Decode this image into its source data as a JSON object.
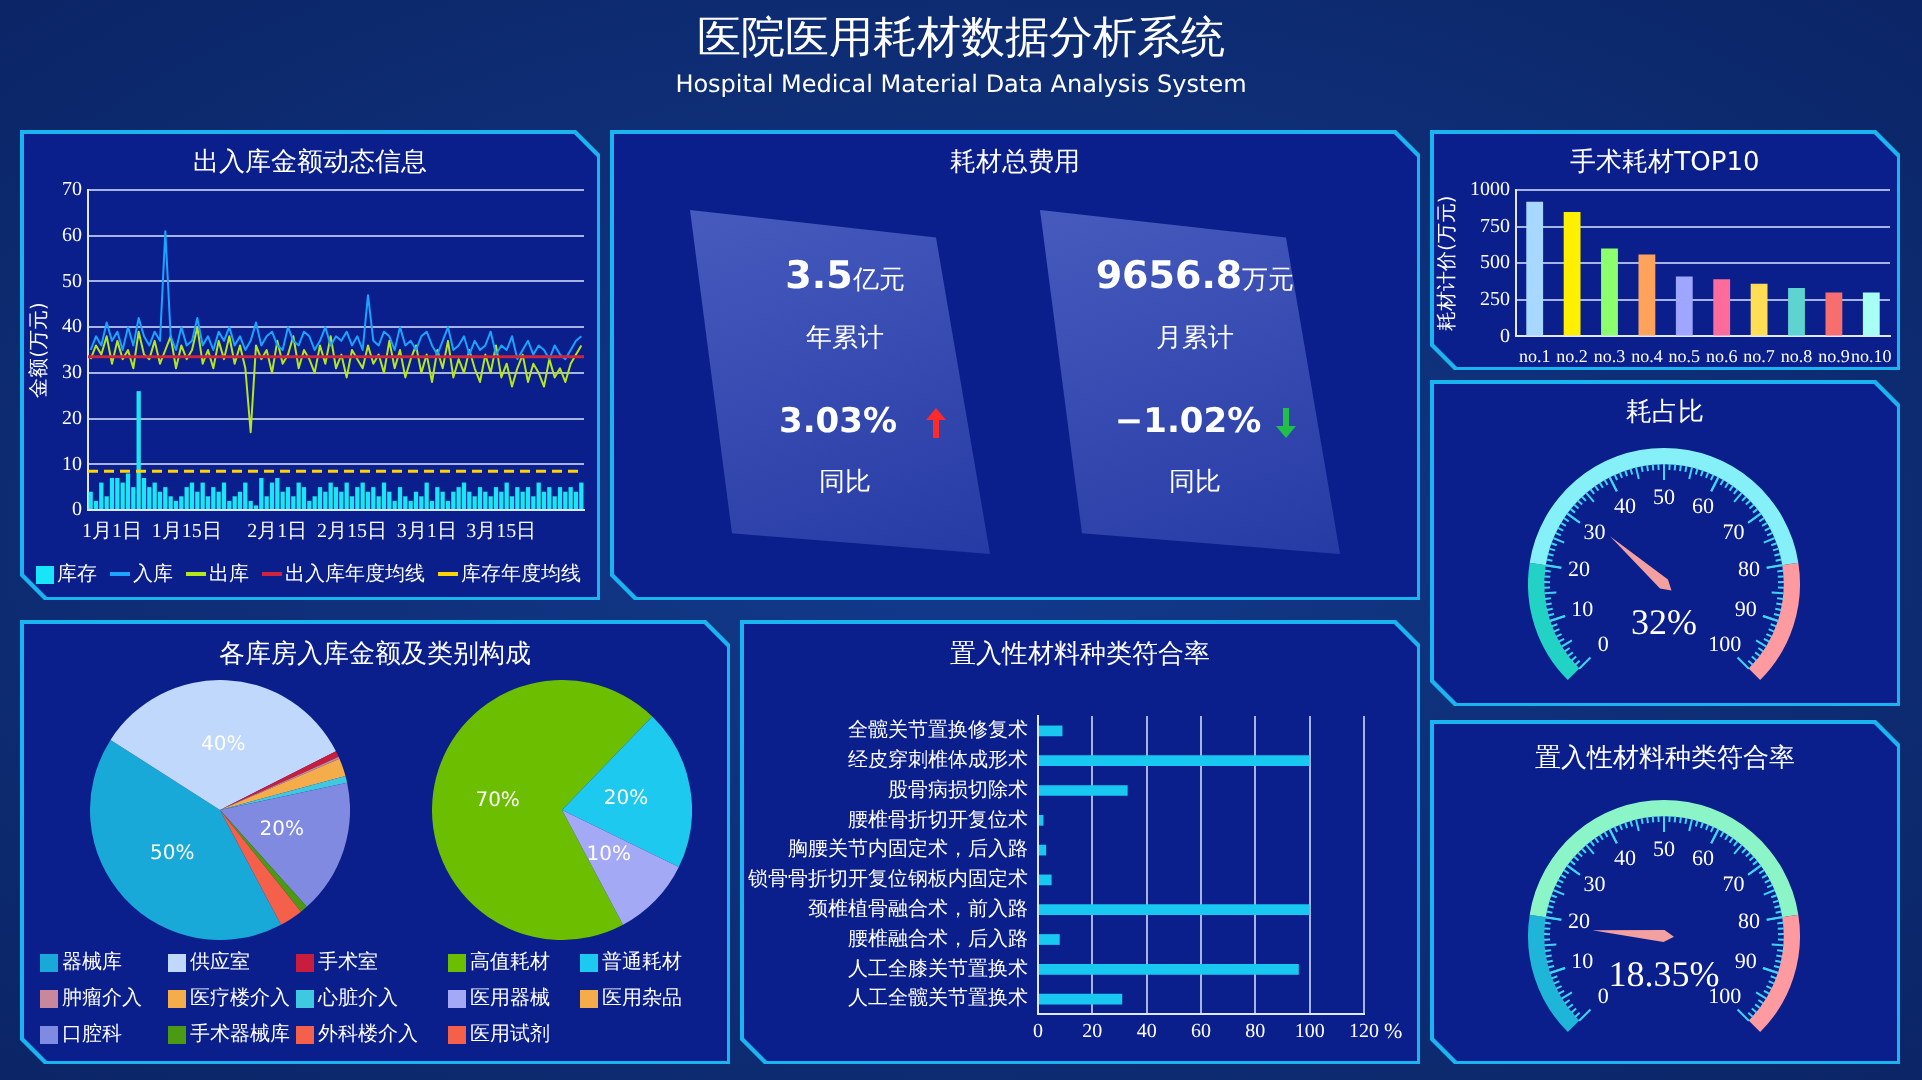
{
  "chart_data": [
    {
      "type": "other",
      "title": "医院医用耗材数据分析系统",
      "subtitle": "Hospital Medical Material Data Analysis System"
    },
    {
      "type": "bar",
      "title": "出入库金额动态信息",
      "ylabel": "金额(万元)",
      "categories": [
        null,
        null,
        null,
        null,
        "1月1日",
        null,
        null,
        null,
        null,
        null,
        null,
        null,
        null,
        null,
        null,
        null,
        null,
        null,
        "1月15日",
        null,
        null,
        null,
        null,
        null,
        null,
        null,
        null,
        null,
        null,
        null,
        null,
        null,
        null,
        null,
        null,
        "2月1日",
        null,
        null,
        null,
        null,
        null,
        null,
        null,
        null,
        null,
        null,
        null,
        null,
        null,
        "2月15日",
        null,
        null,
        null,
        null,
        null,
        null,
        null,
        null,
        null,
        null,
        null,
        null,
        null,
        "3月1日",
        null,
        null,
        null,
        null,
        null,
        null,
        null,
        null,
        null,
        null,
        null,
        null,
        null,
        "3月15日",
        null,
        null,
        null,
        null,
        null,
        null,
        null,
        null,
        null,
        null,
        null,
        null,
        null,
        null,
        null
      ],
      "series": [
        {
          "name": "库存",
          "type": "bar",
          "color": "#18e6f8",
          "values": [
            4,
            2,
            6,
            3,
            7,
            7,
            6,
            8,
            5,
            26,
            7,
            5,
            6,
            4,
            5,
            3,
            2,
            3,
            5,
            6,
            4,
            6,
            3,
            5,
            4,
            6,
            2,
            3,
            4,
            6,
            2,
            1,
            7,
            3,
            6,
            7,
            4,
            5,
            3,
            6,
            5,
            2,
            3,
            5,
            4,
            6,
            5,
            4,
            6,
            3,
            5,
            6,
            4,
            5,
            3,
            6,
            4,
            2,
            5,
            3,
            2,
            4,
            3,
            6,
            2,
            5,
            4,
            2,
            4,
            5,
            6,
            4,
            3,
            5,
            4,
            3,
            5,
            4,
            6,
            3,
            5,
            4,
            5,
            3,
            6,
            4,
            5,
            3,
            5,
            4,
            5,
            4,
            6
          ]
        },
        {
          "name": "入库",
          "type": "line",
          "color": "#1aa3ff",
          "values": [
            35,
            38,
            36,
            41,
            37,
            39,
            35,
            40,
            36,
            42,
            38,
            36,
            39,
            37,
            61,
            38,
            35,
            40,
            36,
            37,
            42,
            36,
            38,
            35,
            39,
            37,
            40,
            36,
            38,
            35,
            37,
            41,
            36,
            38,
            39,
            36,
            35,
            40,
            37,
            36,
            39,
            38,
            35,
            37,
            40,
            36,
            38,
            37,
            39,
            36,
            38,
            35,
            47,
            37,
            36,
            39,
            38,
            35,
            40,
            36,
            37,
            35,
            38,
            39,
            36,
            34,
            37,
            40,
            35,
            36,
            38,
            34,
            37,
            35,
            36,
            39,
            34,
            36,
            35,
            38,
            33,
            35,
            37,
            34,
            36,
            35,
            33,
            36,
            34,
            33,
            35,
            37,
            38
          ]
        },
        {
          "name": "出库",
          "type": "line",
          "color": "#b6e61c",
          "values": [
            33,
            36,
            34,
            38,
            32,
            37,
            33,
            35,
            31,
            39,
            34,
            33,
            37,
            32,
            35,
            38,
            31,
            36,
            33,
            35,
            40,
            32,
            35,
            31,
            37,
            33,
            38,
            32,
            36,
            31,
            17,
            36,
            33,
            35,
            30,
            37,
            32,
            34,
            38,
            31,
            35,
            33,
            30,
            36,
            32,
            38,
            31,
            34,
            29,
            35,
            33,
            31,
            36,
            32,
            34,
            30,
            37,
            31,
            35,
            29,
            33,
            36,
            30,
            34,
            28,
            35,
            31,
            37,
            29,
            33,
            30,
            35,
            31,
            28,
            34,
            30,
            36,
            29,
            32,
            27,
            31,
            34,
            28,
            32,
            30,
            27,
            33,
            29,
            31,
            28,
            32,
            34,
            36
          ]
        }
      ],
      "ref_lines": [
        {
          "axis": "y",
          "value": 33.5,
          "label": "出入库年度均线",
          "color": "#d0243c",
          "line_style": "solid"
        },
        {
          "axis": "y",
          "value": 8.5,
          "label": "库存年度均线",
          "color": "#ffd400",
          "line_style": "dashed"
        }
      ],
      "ylim": [
        0,
        70
      ],
      "yticks": [
        0,
        10,
        20,
        30,
        40,
        50,
        60,
        70
      ],
      "grid": "y",
      "legend": "bottom",
      "marker": "none"
    },
    {
      "type": "other",
      "title": "耗材总费用",
      "annotations": [
        "3.5亿元",
        "年累计",
        "3.03%",
        "同比",
        "9656.8万元",
        "月累计",
        "−1.02%",
        "同比"
      ]
    },
    {
      "type": "bar",
      "title": "手术耗材TOP10",
      "ylabel": "耗材计价(万元)",
      "categories": [
        "no.1",
        "no.2",
        "no.3",
        "no.4",
        "no.5",
        "no.6",
        "no.7",
        "no.8",
        "no.9",
        "no.10"
      ],
      "values": [
        920,
        850,
        600,
        560,
        410,
        390,
        360,
        330,
        300,
        300
      ],
      "colors": [
        "#a8d8ff",
        "#fff000",
        "#8cff6e",
        "#ffa35c",
        "#9ea6ff",
        "#ff6b9a",
        "#ffdd55",
        "#5fd3d0",
        "#f76e6e",
        "#a8fff4"
      ],
      "ylim": [
        0,
        1000
      ],
      "yticks": [
        0,
        250,
        500,
        750,
        1000
      ],
      "grid": "y"
    },
    {
      "type": "donut",
      "title": "耗占比",
      "categories": [
        null,
        null,
        null
      ],
      "values": [
        20,
        60,
        20
      ],
      "colors": [
        "#22d3c5",
        "#85f0f8",
        "#ff9aa0"
      ],
      "annotations": [
        "0",
        "10",
        "20",
        "30",
        "40",
        "50",
        "60",
        "70",
        "80",
        "90",
        "100",
        "32%"
      ]
    },
    {
      "type": "pie",
      "title": "各库房入库金额及类别构成",
      "categories": [
        "器械库",
        "供应室",
        "手术室",
        "肿瘤介入",
        "医疗楼介入",
        "心脏介入",
        "口腔科",
        "手术器械库",
        "外科楼介入"
      ],
      "values": [
        50,
        40,
        0.9,
        0.3,
        2.7,
        1,
        20,
        1.1,
        3.5
      ],
      "colors": [
        "#18a9d8",
        "#bfd8fb",
        "#c81d3c",
        "#c9879d",
        "#f5ac4a",
        "#3ec9e0",
        "#7f8ae0",
        "#4c9a12",
        "#f4604a"
      ],
      "value_labels": [
        "50%",
        "40%",
        null,
        null,
        null,
        null,
        "20%",
        null,
        null
      ],
      "legend": "bottom"
    },
    {
      "type": "pie",
      "categories": [
        "高值耗材",
        "普通耗材",
        "医用器械",
        "医用杂品",
        "医用试剂"
      ],
      "values": [
        70,
        20,
        10,
        0,
        0
      ],
      "colors": [
        "#6cbf00",
        "#1ec9f0",
        "#a4a9f5",
        "#f5ac4a",
        "#f4604a"
      ],
      "value_labels": [
        "70%",
        "20%",
        "10%",
        null,
        null
      ],
      "legend": "bottom"
    },
    {
      "type": "bar",
      "orientation": "horizontal",
      "title": "置入性材料种类符合率",
      "xlabel": "%",
      "categories": [
        "全髋关节置换修复术",
        "经皮穿刺椎体成形术",
        "股骨病损切除术",
        "腰椎骨折切开复位术",
        "胸腰关节内固定术，后入路",
        "锁骨骨折切开复位钢板内固定术",
        "颈椎植骨融合术，前入路",
        "腰椎融合术，后入路",
        "人工全膝关节置换术",
        "人工全髋关节置换术"
      ],
      "values": [
        9,
        100,
        33,
        2,
        3,
        5,
        100,
        8,
        96,
        31
      ],
      "color": "#18c8f0",
      "xlim": [
        0,
        120
      ],
      "xticks": [
        0,
        20,
        40,
        60,
        80,
        100,
        120
      ],
      "grid": "x"
    },
    {
      "type": "donut",
      "title": "置入性材料种类符合率",
      "categories": [
        null,
        null,
        null
      ],
      "values": [
        20,
        60,
        20
      ],
      "colors": [
        "#1fb5d8",
        "#8cf5c8",
        "#ff9aa0"
      ],
      "annotations": [
        "0",
        "10",
        "20",
        "30",
        "40",
        "50",
        "60",
        "70",
        "80",
        "90",
        "100",
        "18.35%"
      ]
    }
  ]
}
